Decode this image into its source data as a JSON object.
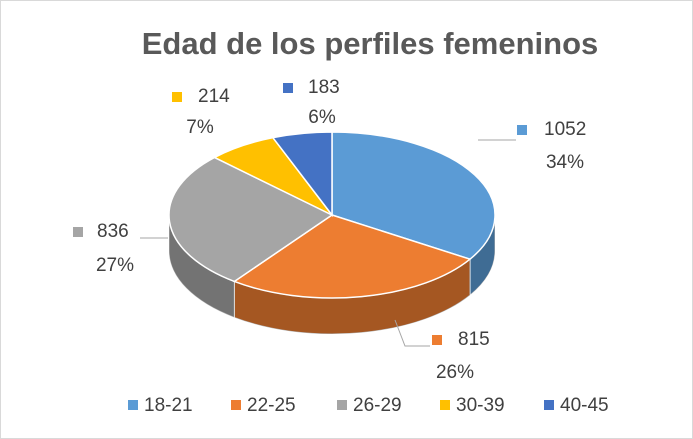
{
  "chart_data": {
    "type": "pie3d",
    "title": "Edad de los perfiles femeninos",
    "categories": [
      "18-21",
      "22-25",
      "26-29",
      "30-39",
      "40-45"
    ],
    "values": [
      1052,
      815,
      836,
      214,
      183
    ],
    "percent_labels": [
      "34%",
      "26%",
      "27%",
      "7%",
      "6%"
    ],
    "colors": [
      "#5b9bd5",
      "#ed7d31",
      "#a5a5a5",
      "#ffc000",
      "#4472c4"
    ],
    "legend": "bottom"
  }
}
